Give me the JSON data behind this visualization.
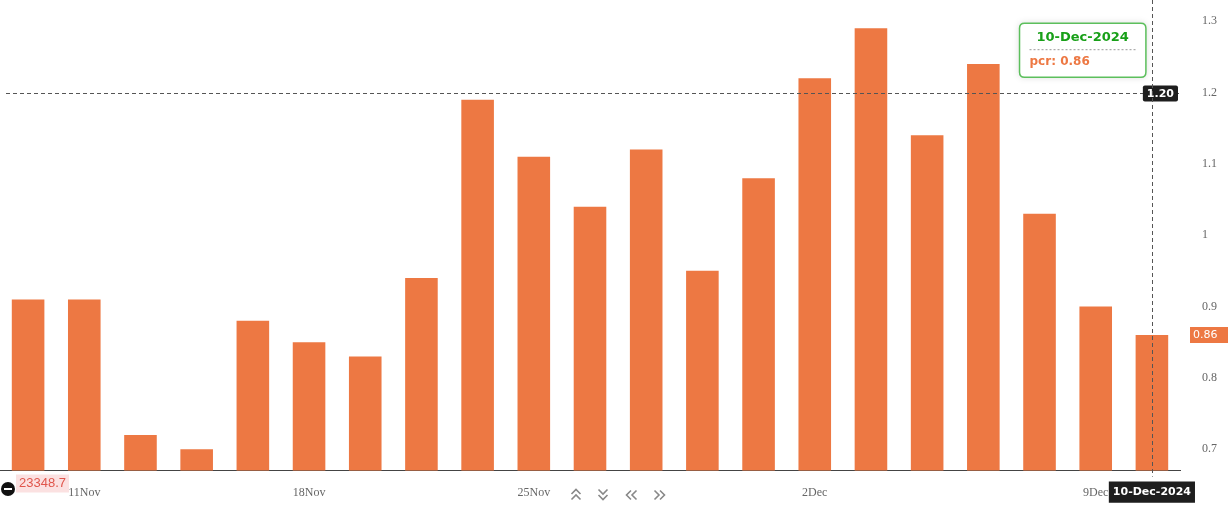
{
  "chart_data": {
    "type": "bar",
    "categories": [
      null,
      "11Nov",
      null,
      null,
      null,
      "18Nov",
      null,
      null,
      null,
      "25Nov",
      null,
      null,
      null,
      null,
      "2Dec",
      null,
      null,
      null,
      null,
      "9Dec",
      "10-Dec-2024"
    ],
    "values": [
      0.91,
      0.91,
      0.72,
      0.7,
      0.88,
      0.85,
      0.83,
      0.94,
      1.19,
      1.11,
      1.04,
      1.12,
      0.95,
      1.08,
      1.22,
      1.29,
      1.14,
      1.24,
      1.03,
      0.9,
      0.86
    ],
    "color": "#ed7843",
    "ylim": [
      0.67,
      1.3
    ],
    "yticks": [
      0.7,
      0.8,
      0.9,
      1,
      1.1,
      1.2,
      1.3
    ],
    "ref_lines": [
      {
        "axis": "y",
        "value": 1.2,
        "label": "1.20",
        "line_style": "dashed",
        "color": "#555555"
      },
      {
        "axis": "x",
        "value": "10-Dec-2024",
        "line_style": "dashed",
        "color": "#555555"
      }
    ],
    "annotations": [
      "23348.7",
      "10-Dec-2024",
      "pcr: 0.86",
      "0.86"
    ]
  }
}
